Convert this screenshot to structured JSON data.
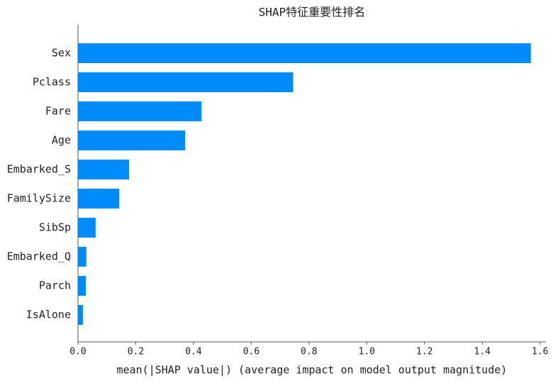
{
  "chart_data": {
    "type": "bar",
    "orientation": "horizontal",
    "title": "SHAP特征重要性排名",
    "xlabel": "mean(|SHAP value|) (average impact on model output magnitude)",
    "categories": [
      "Sex",
      "Pclass",
      "Fare",
      "Age",
      "Embarked_S",
      "FamilySize",
      "SibSp",
      "Embarked_Q",
      "Parch",
      "IsAlone"
    ],
    "values": [
      1.568,
      0.745,
      0.428,
      0.371,
      0.177,
      0.143,
      0.061,
      0.029,
      0.027,
      0.017
    ],
    "color": "#008bfb",
    "xlim": [
      0,
      1.62
    ],
    "xticks": [
      {
        "value": 0,
        "label": "0.0"
      },
      0.2,
      0.4,
      0.6,
      0.8,
      {
        "value": 1,
        "label": "1.0"
      },
      1.2,
      1.4,
      1.6
    ]
  }
}
